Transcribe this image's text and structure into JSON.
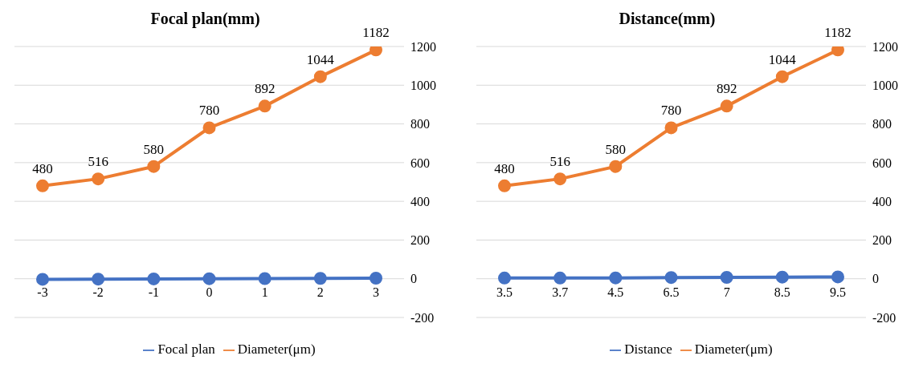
{
  "chart_data": [
    {
      "type": "line",
      "title": "Focal plan(mm)",
      "categories": [
        "-3",
        "-2",
        "-1",
        "0",
        "1",
        "2",
        "3"
      ],
      "series": [
        {
          "name": "Focal plan",
          "color": "#4472c4",
          "values": [
            -3,
            -2,
            -1,
            0,
            1,
            2,
            3
          ]
        },
        {
          "name": "Diameter(μm)",
          "color": "#ed7d31",
          "values": [
            480,
            516,
            580,
            780,
            892,
            1044,
            1182
          ],
          "value_labels": [
            "480",
            "516",
            "580",
            "780",
            "892",
            "1044",
            "1182"
          ]
        }
      ],
      "ylim": [
        -200,
        1200
      ],
      "yticks": [
        -200,
        0,
        200,
        400,
        600,
        800,
        1000,
        1200
      ],
      "grid": "y",
      "legend": "bottom",
      "marker": "circle",
      "line_style": "solid"
    },
    {
      "type": "line",
      "title": "Distance(mm)",
      "categories": [
        "3.5",
        "3.7",
        "4.5",
        "6.5",
        "7",
        "8.5",
        "9.5"
      ],
      "series": [
        {
          "name": "Distance",
          "color": "#4472c4",
          "values": [
            3.5,
            3.7,
            4.5,
            6.5,
            7,
            8.5,
            9.5
          ]
        },
        {
          "name": "Diameter(μm)",
          "color": "#ed7d31",
          "values": [
            480,
            516,
            580,
            780,
            892,
            1044,
            1182
          ],
          "value_labels": [
            "480",
            "516",
            "580",
            "780",
            "892",
            "1044",
            "1182"
          ]
        }
      ],
      "ylim": [
        -200,
        1200
      ],
      "yticks": [
        -200,
        0,
        200,
        400,
        600,
        800,
        1000,
        1200
      ],
      "grid": "y",
      "legend": "bottom",
      "marker": "circle",
      "line_style": "solid"
    }
  ]
}
